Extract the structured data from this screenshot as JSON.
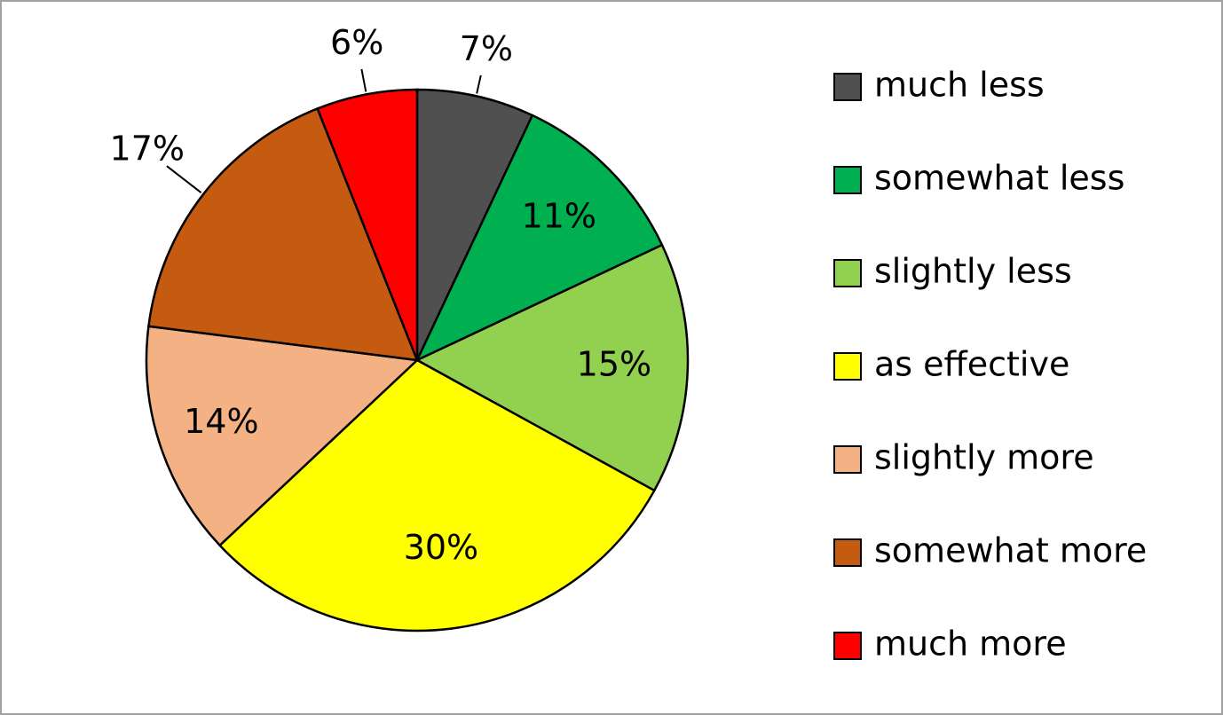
{
  "chart_data": {
    "type": "pie",
    "categories": [
      "much less",
      "somewhat less",
      "slightly less",
      "as effective",
      "slightly more",
      "somewhat more",
      "much more"
    ],
    "values": [
      7,
      11,
      15,
      30,
      14,
      17,
      6
    ],
    "value_labels": [
      "7%",
      "11%",
      "15%",
      "30%",
      "14%",
      "17%",
      "6%"
    ],
    "colors": [
      "#505050",
      "#00b050",
      "#92d050",
      "#ffff00",
      "#f4b183",
      "#c55a11",
      "#ff0000"
    ],
    "legend": "right"
  }
}
